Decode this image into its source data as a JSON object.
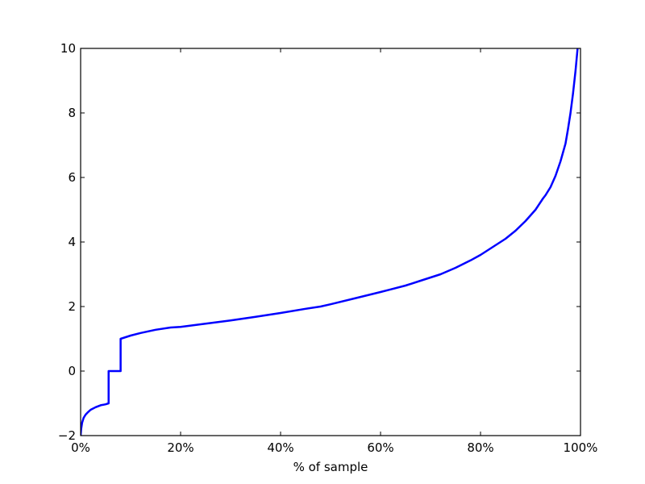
{
  "chart_data": {
    "type": "line",
    "title": "",
    "xlabel": "% of sample",
    "ylabel": "",
    "xlim": [
      0,
      100
    ],
    "ylim": [
      -2,
      10
    ],
    "x_ticks": [
      0,
      20,
      40,
      60,
      80,
      100
    ],
    "x_tick_labels": [
      "0%",
      "20%",
      "40%",
      "60%",
      "80%",
      "100%"
    ],
    "y_ticks": [
      -2,
      0,
      2,
      4,
      6,
      8,
      10
    ],
    "y_tick_labels": [
      "−2",
      "0",
      "2",
      "4",
      "6",
      "8",
      "10"
    ],
    "grid": false,
    "legend": "none",
    "line_color": "#0000ff",
    "series": [
      {
        "x": [
          0,
          0.1,
          0.3,
          0.6,
          1,
          1.5,
          2,
          3,
          4,
          5,
          5.6,
          5.6,
          8,
          8,
          10,
          12,
          15,
          18,
          20,
          25,
          30,
          35,
          40,
          45,
          48,
          50,
          55,
          60,
          62,
          65,
          68,
          70,
          72,
          75,
          78,
          80,
          82,
          84,
          85,
          87,
          89,
          91,
          92.5,
          93,
          94,
          95,
          96,
          97,
          97.5,
          98,
          98.5,
          99,
          99.3,
          99.6,
          100
        ],
        "y": [
          -2,
          -1.8,
          -1.6,
          -1.45,
          -1.35,
          -1.27,
          -1.2,
          -1.12,
          -1.06,
          -1.03,
          -1.0,
          0,
          0,
          1.0,
          1.1,
          1.18,
          1.28,
          1.35,
          1.37,
          1.47,
          1.57,
          1.68,
          1.8,
          1.93,
          2.0,
          2.07,
          2.26,
          2.45,
          2.53,
          2.65,
          2.8,
          2.9,
          3.0,
          3.2,
          3.43,
          3.6,
          3.8,
          4.0,
          4.1,
          4.35,
          4.65,
          5.0,
          5.35,
          5.45,
          5.7,
          6.05,
          6.5,
          7.05,
          7.5,
          8.0,
          8.6,
          9.3,
          9.8,
          10.3,
          11.0
        ]
      }
    ]
  }
}
